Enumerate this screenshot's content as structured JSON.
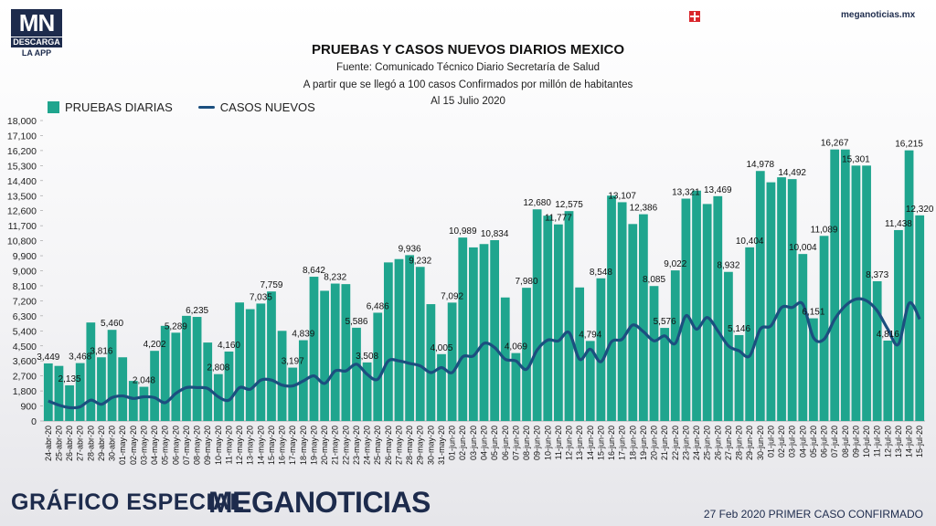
{
  "header": {
    "logo_text": "MN",
    "logo_sub": "DESCARGA",
    "logo_app": "LA APP",
    "site": "meganoticias.mx"
  },
  "title": "PRUEBAS Y CASOS NUEVOS DIARIOS MEXICO",
  "subtitle1": "Fuente: Comunicado Técnico Diario Secretaría de Salud",
  "subtitle2": "A partir que se llegó a 100 casos Confirmados por millón de habitantes",
  "subtitle3": "Al 15 Julio 2020",
  "footer": {
    "left": "GRÁFICO ESPECIAL",
    "brand": "MEGANOTICIAS",
    "right": "27 Feb 2020 PRIMER CASO CONFIRMADO"
  },
  "colors": {
    "bars": "#1fa58e",
    "line": "#1b4f7f",
    "brand": "#1d2b4c",
    "accent": "#d9262c"
  },
  "chart_data": {
    "type": "bar",
    "ylim": [
      0,
      18000
    ],
    "yticks": [
      "0",
      "900",
      "1,800",
      "2,700",
      "3,600",
      "4,500",
      "5,400",
      "6,300",
      "7,200",
      "8,100",
      "9,000",
      "9,900",
      "10,800",
      "11,700",
      "12,600",
      "13,500",
      "14,400",
      "15,300",
      "16,200",
      "17,100",
      "18,000"
    ],
    "categories": [
      "24-abr-20",
      "25-abr-20",
      "26-abr-20",
      "27-abr-20",
      "28-abr-20",
      "29-abr-20",
      "30-abr-20",
      "01-may-20",
      "02-may-20",
      "03-may-20",
      "04-may-20",
      "05-may-20",
      "06-may-20",
      "07-may-20",
      "08-may-20",
      "09-may-20",
      "10-may-20",
      "11-may-20",
      "12-may-20",
      "13-may-20",
      "14-may-20",
      "15-may-20",
      "16-may-20",
      "17-may-20",
      "18-may-20",
      "19-may-20",
      "20-may-20",
      "21-may-20",
      "22-may-20",
      "23-may-20",
      "24-may-20",
      "25-may-20",
      "26-may-20",
      "27-may-20",
      "28-may-20",
      "29-may-20",
      "30-may-20",
      "31-may-20",
      "01-jun-20",
      "02-jun-20",
      "03-jun-20",
      "04-jun-20",
      "05-jun-20",
      "06-jun-20",
      "07-jun-20",
      "08-jun-20",
      "09-jun-20",
      "10-jun-20",
      "11-jun-20",
      "12-jun-20",
      "13-jun-20",
      "14-jun-20",
      "15-jun-20",
      "16-jun-20",
      "17-jun-20",
      "18-jun-20",
      "19-jun-20",
      "20-jun-20",
      "21-jun-20",
      "22-jun-20",
      "23-jun-20",
      "24-jun-20",
      "25-jun-20",
      "26-jun-20",
      "27-jun-20",
      "28-jun-20",
      "29-jun-20",
      "30-jun-20",
      "01-jul-20",
      "02-jul-20",
      "03-jul-20",
      "04-jul-20",
      "05-jul-20",
      "06-jul-20",
      "07-jul-20",
      "08-jul-20",
      "09-jul-20",
      "10-jul-20",
      "11-jul-20",
      "12-jul-20",
      "13-jul-20",
      "14-jul-20",
      "15-jul-20"
    ],
    "series": [
      {
        "name": "PRUEBAS DIARIAS",
        "type": "bar",
        "values": [
          3449,
          3300,
          2135,
          3468,
          5900,
          3816,
          5460,
          3816,
          2400,
          2048,
          4202,
          5700,
          5289,
          6300,
          6235,
          4700,
          2808,
          4160,
          7100,
          6700,
          7035,
          7759,
          5400,
          3197,
          4839,
          8642,
          7800,
          8232,
          8200,
          5586,
          3508,
          6486,
          9500,
          9700,
          9936,
          9232,
          7000,
          4005,
          7092,
          10989,
          10400,
          10600,
          10834,
          7400,
          4069,
          7980,
          12680,
          12300,
          11777,
          12575,
          8000,
          4794,
          8548,
          13500,
          13107,
          11800,
          12386,
          8085,
          5576,
          9022,
          13321,
          13800,
          13000,
          13469,
          8932,
          5146,
          10404,
          14978,
          14300,
          14600,
          14492,
          10004,
          6151,
          11089,
          16267,
          16267,
          15301,
          15301,
          8373,
          4816,
          11438,
          16215,
          12320
        ],
        "labels": [
          "3,449",
          "",
          "2,135",
          "3,468",
          "",
          "3,816",
          "5,460",
          "",
          "",
          "2,048",
          "4,202",
          "",
          "5,289",
          "",
          "6,235",
          "",
          "2,808",
          "4,160",
          "",
          "",
          "7,035",
          "7,759",
          "",
          "3,197",
          "4,839",
          "8,642",
          "",
          "8,232",
          "",
          "5,586",
          "3,508",
          "6,486",
          "",
          "",
          "9,936",
          "9,232",
          "",
          "4,005",
          "7,092",
          "10,989",
          "",
          "",
          "10,834",
          "",
          "4,069",
          "7,980",
          "12,680",
          "",
          "11,777",
          "12,575",
          "",
          "4,794",
          "8,548",
          "",
          "13,107",
          "",
          "12,386",
          "8,085",
          "5,576",
          "9,022",
          "13,321",
          "",
          "",
          "13,469",
          "8,932",
          "5,146",
          "10,404",
          "14,978",
          "",
          "",
          "14,492",
          "10,004",
          "6,151",
          "11,089",
          "16,267",
          "",
          "15,301",
          "",
          "8,373",
          "4,816",
          "11,438",
          "16,215",
          "12,320"
        ]
      },
      {
        "name": "CASOS NUEVOS",
        "type": "line",
        "values": [
          1200,
          950,
          800,
          850,
          1250,
          1000,
          1400,
          1500,
          1350,
          1450,
          1400,
          1100,
          1650,
          2000,
          2000,
          1950,
          1450,
          1250,
          2000,
          1900,
          2450,
          2450,
          2150,
          2100,
          2400,
          2700,
          2250,
          3000,
          3000,
          3400,
          2800,
          2500,
          3600,
          3600,
          3450,
          3300,
          2900,
          3200,
          2900,
          3850,
          3900,
          4650,
          4400,
          3700,
          3600,
          3100,
          4250,
          4850,
          4800,
          5300,
          3700,
          4300,
          3550,
          4750,
          4900,
          5750,
          5350,
          4800,
          5100,
          4650,
          6300,
          5500,
          6200,
          5400,
          4500,
          4200,
          3900,
          5500,
          5700,
          6800,
          6800,
          7000,
          5000,
          4900,
          6100,
          6900,
          7300,
          7200,
          6600,
          5500,
          4600,
          7050,
          6100
        ]
      }
    ]
  }
}
